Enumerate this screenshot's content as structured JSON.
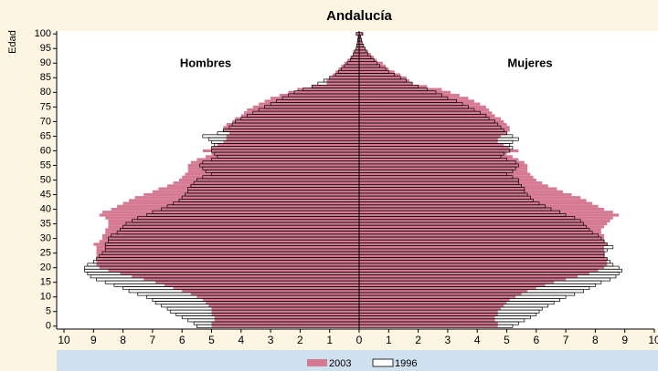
{
  "chart_data": {
    "type": "pyramid",
    "title": "Andalucía",
    "y_label": "Edad",
    "panels": [
      "Hombres",
      "Mujeres"
    ],
    "ages": [
      0,
      1,
      2,
      3,
      4,
      5,
      6,
      7,
      8,
      9,
      10,
      11,
      12,
      13,
      14,
      15,
      16,
      17,
      18,
      19,
      20,
      21,
      22,
      23,
      24,
      25,
      26,
      27,
      28,
      29,
      30,
      31,
      32,
      33,
      34,
      35,
      36,
      37,
      38,
      39,
      40,
      41,
      42,
      43,
      44,
      45,
      46,
      47,
      48,
      49,
      50,
      51,
      52,
      53,
      54,
      55,
      56,
      57,
      58,
      59,
      60,
      61,
      62,
      63,
      64,
      65,
      66,
      67,
      68,
      69,
      70,
      71,
      72,
      73,
      74,
      75,
      76,
      77,
      78,
      79,
      80,
      81,
      82,
      83,
      84,
      85,
      86,
      87,
      88,
      89,
      90,
      91,
      92,
      93,
      94,
      95,
      96,
      97,
      98,
      99,
      100
    ],
    "series": [
      {
        "name": "2003",
        "color": "#d57a92",
        "outline": false,
        "values": [
          [
            -5.0,
            -5.0,
            -4.9,
            -4.9,
            -5.0,
            -5.0,
            -5.0,
            -5.1,
            -5.2,
            -5.3,
            -5.5,
            -5.7,
            -6.0,
            -6.3,
            -6.6,
            -6.9,
            -7.3,
            -7.7,
            -8.1,
            -8.5,
            -8.8,
            -8.9,
            -8.9,
            -8.9,
            -8.9,
            -8.9,
            -8.9,
            -8.9,
            -9.0,
            -8.8,
            -8.7,
            -8.7,
            -8.6,
            -8.6,
            -8.5,
            -8.5,
            -8.5,
            -8.6,
            -8.8,
            -8.7,
            -8.4,
            -8.2,
            -8.0,
            -7.8,
            -7.6,
            -7.3,
            -7.0,
            -6.8,
            -6.5,
            -6.3,
            -6.1,
            -6.0,
            -5.9,
            -5.8,
            -5.8,
            -5.8,
            -5.7,
            -5.5,
            -5.2,
            -5.0,
            -5.3,
            -5.0,
            -4.8,
            -4.6,
            -4.5,
            -4.5,
            -4.4,
            -4.6,
            -4.6,
            -4.5,
            -4.3,
            -4.2,
            -4.0,
            -3.9,
            -3.8,
            -3.6,
            -3.4,
            -3.2,
            -3.0,
            -2.7,
            -2.4,
            -2.1,
            -1.6,
            -1.1,
            -1.1,
            -1.0,
            -0.9,
            -0.8,
            -0.7,
            -0.6,
            -0.5,
            -0.4,
            -0.3,
            -0.2,
            -0.2,
            -0.1,
            -0.1,
            -0.05,
            -0.05,
            -0.03,
            -0.1
          ],
          [
            4.7,
            4.7,
            4.6,
            4.6,
            4.7,
            4.7,
            4.8,
            4.9,
            5.0,
            5.1,
            5.3,
            5.5,
            5.7,
            6.0,
            6.3,
            6.6,
            7.0,
            7.4,
            7.8,
            8.1,
            8.3,
            8.4,
            8.4,
            8.4,
            8.3,
            8.3,
            8.3,
            8.3,
            8.4,
            8.3,
            8.3,
            8.3,
            8.2,
            8.2,
            8.3,
            8.4,
            8.5,
            8.6,
            8.8,
            8.6,
            8.3,
            8.1,
            7.9,
            7.7,
            7.5,
            7.2,
            6.9,
            6.7,
            6.4,
            6.2,
            6.0,
            5.9,
            5.8,
            5.7,
            5.7,
            5.7,
            5.6,
            5.4,
            5.2,
            5.0,
            5.4,
            5.1,
            4.9,
            4.7,
            4.7,
            4.8,
            5.0,
            5.1,
            5.1,
            5.0,
            4.9,
            4.8,
            4.6,
            4.5,
            4.4,
            4.3,
            4.1,
            3.9,
            3.7,
            3.4,
            3.1,
            2.8,
            2.3,
            1.8,
            1.7,
            1.6,
            1.4,
            1.2,
            1.0,
            0.9,
            0.8,
            0.6,
            0.5,
            0.4,
            0.3,
            0.2,
            0.15,
            0.1,
            0.08,
            0.05,
            0.15
          ]
        ]
      },
      {
        "name": "1996",
        "color": "#000000",
        "outline": true,
        "values": [
          [
            -5.5,
            -5.6,
            -5.8,
            -6.0,
            -6.2,
            -6.4,
            -6.5,
            -6.7,
            -6.9,
            -7.0,
            -7.2,
            -7.5,
            -7.8,
            -8.0,
            -8.3,
            -8.6,
            -8.9,
            -9.1,
            -9.2,
            -9.3,
            -9.3,
            -9.2,
            -9.0,
            -8.9,
            -8.8,
            -8.7,
            -8.6,
            -8.6,
            -8.6,
            -8.5,
            -8.5,
            -8.4,
            -8.2,
            -8.1,
            -8.0,
            -7.9,
            -7.7,
            -7.5,
            -7.2,
            -7.0,
            -6.7,
            -6.5,
            -6.3,
            -6.1,
            -6.0,
            -5.9,
            -5.8,
            -5.8,
            -5.7,
            -5.6,
            -5.5,
            -5.3,
            -5.0,
            -5.2,
            -5.3,
            -5.4,
            -5.3,
            -5.0,
            -4.8,
            -4.9,
            -5.0,
            -5.0,
            -4.9,
            -5.0,
            -5.1,
            -5.3,
            -4.8,
            -4.6,
            -4.4,
            -4.3,
            -4.2,
            -4.0,
            -3.8,
            -3.6,
            -3.4,
            -3.2,
            -3.0,
            -2.8,
            -2.6,
            -2.4,
            -2.2,
            -1.9,
            -1.6,
            -1.4,
            -1.2,
            -1.0,
            -0.8,
            -0.7,
            -0.6,
            -0.5,
            -0.4,
            -0.3,
            -0.25,
            -0.2,
            -0.15,
            -0.1,
            -0.08,
            -0.06,
            -0.05,
            -0.03,
            -0.1
          ],
          [
            5.2,
            5.4,
            5.6,
            5.8,
            6.0,
            6.1,
            6.2,
            6.4,
            6.6,
            6.8,
            7.0,
            7.3,
            7.6,
            7.8,
            8.0,
            8.2,
            8.5,
            8.7,
            8.8,
            8.9,
            8.8,
            8.6,
            8.5,
            8.4,
            8.3,
            8.3,
            8.4,
            8.6,
            8.4,
            8.3,
            8.2,
            8.1,
            7.9,
            7.8,
            7.7,
            7.6,
            7.5,
            7.3,
            7.0,
            6.8,
            6.5,
            6.3,
            6.1,
            5.9,
            5.8,
            5.7,
            5.6,
            5.6,
            5.5,
            5.4,
            5.4,
            5.2,
            5.0,
            5.2,
            5.3,
            5.4,
            5.3,
            5.0,
            4.8,
            4.9,
            5.1,
            5.2,
            5.1,
            5.2,
            5.4,
            5.2,
            5.0,
            4.9,
            4.8,
            4.7,
            4.6,
            4.4,
            4.3,
            4.1,
            3.9,
            3.7,
            3.5,
            3.3,
            3.0,
            2.8,
            2.6,
            2.3,
            2.0,
            1.8,
            1.6,
            1.4,
            1.2,
            1.0,
            0.9,
            0.7,
            0.6,
            0.5,
            0.4,
            0.3,
            0.25,
            0.2,
            0.15,
            0.1,
            0.08,
            0.05,
            0.1
          ]
        ]
      }
    ],
    "xlim": [
      -10,
      10
    ],
    "xticks": [
      {
        "value": -10,
        "label": "10"
      },
      {
        "value": -9,
        "label": "9"
      },
      {
        "value": -8,
        "label": "8"
      },
      {
        "value": -7,
        "label": "7"
      },
      {
        "value": -6,
        "label": "6"
      },
      {
        "value": -5,
        "label": "5"
      },
      {
        "value": -4,
        "label": "4"
      },
      {
        "value": -3,
        "label": "3"
      },
      {
        "value": -2,
        "label": "2"
      },
      {
        "value": -1,
        "label": "1"
      },
      0,
      1,
      2,
      3,
      4,
      5,
      6,
      7,
      8,
      9,
      10
    ],
    "ylim": [
      -1,
      101
    ],
    "yticks": [
      0,
      5,
      10,
      15,
      20,
      25,
      30,
      35,
      40,
      45,
      50,
      55,
      60,
      65,
      70,
      75,
      80,
      85,
      90,
      95,
      100
    ]
  }
}
